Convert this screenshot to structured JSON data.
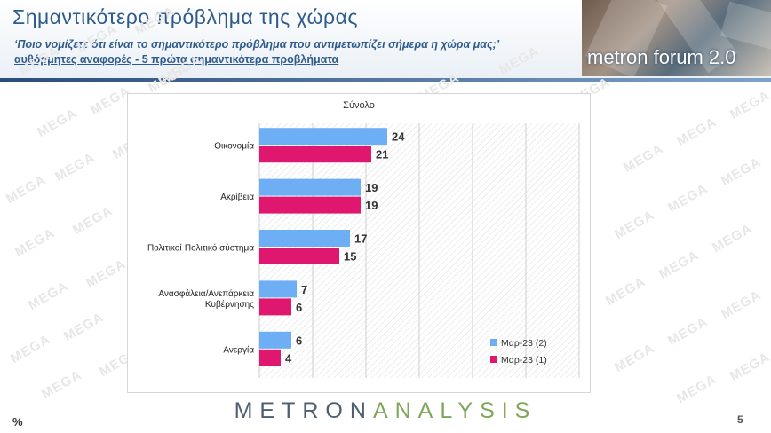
{
  "header": {
    "title": "Σημαντικότερο πρόβλημα της χώρας",
    "subtitle": "‘Ποιο νομίζετε ότι  είναι το σημαντικότερο πρόβλημα που αντιμετωπίζει σήμερα η χώρα μας;’",
    "note": "αυθόρμητες αναφορές - 5 πρώτα σημαντικότερα προβλήματα",
    "logo_text": "metron forum 2.0"
  },
  "watermark_text": "MEGA",
  "chart_data": {
    "type": "bar",
    "orientation": "horizontal",
    "title": "Σύνολο",
    "categories": [
      "Οικονομία",
      "Ακρίβεια",
      "Πολιτικοί-Πολιτικό σύστημα",
      "Ανασφάλεια/Ανεπάρκεια Κυβέρνησης",
      "Ανεργία"
    ],
    "series": [
      {
        "name": "Μαρ-23 (2)",
        "color": "#6eaef5",
        "values": [
          24,
          19,
          17,
          7,
          6
        ]
      },
      {
        "name": "Μαρ-23 (1)",
        "color": "#e0176f",
        "values": [
          21,
          19,
          15,
          6,
          4
        ]
      }
    ],
    "xlim": [
      0,
      60
    ],
    "grid": true,
    "legend_position": "bottom-right"
  },
  "footer": {
    "brand_dark": "METRON",
    "brand_light": "ANALYSIS",
    "unit": "%",
    "page_number": "5"
  }
}
